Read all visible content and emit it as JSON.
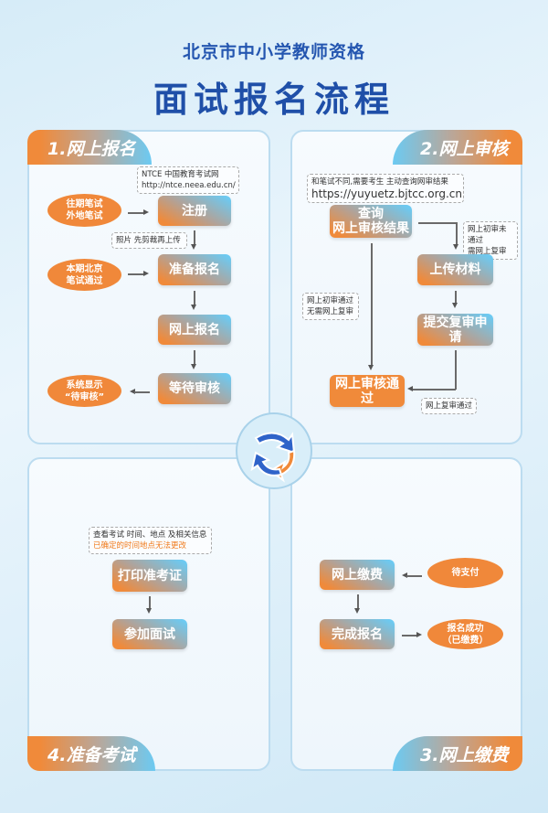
{
  "header": {
    "subtitle": "北京市中小学教师资格",
    "title": "面试报名流程"
  },
  "colors": {
    "orange": "#f08a3a",
    "blue": "#6ccaf2",
    "title_blue": "#1f4fa8"
  },
  "center_icon": "refresh-cycle-icon",
  "step1": {
    "tab": "1.网上报名",
    "note_site": {
      "line1": "NTCE 中国教育考试网",
      "line2": "http://ntce.neea.edu.cn/"
    },
    "note_photo": "照片 先剪裁再上传",
    "boxes": [
      "注册",
      "准备报名",
      "网上报名",
      "等待审核"
    ],
    "ovals": [
      {
        "line1": "往期笔试",
        "line2": "外地笔试"
      },
      {
        "line1": "本期北京",
        "line2": "笔试通过"
      },
      {
        "line1": "系统显示",
        "line2": "“待审核”"
      }
    ]
  },
  "step2": {
    "tab": "2.网上审核",
    "note_top": {
      "line1": "和笔试不同,需要考生 主动查询网审结果",
      "line2": "https://yuyuetz.bjtcc.org.cn"
    },
    "boxes": {
      "query_line1": "查询",
      "query_line2": "网上审核结果",
      "upload": "上传材料",
      "submit": "提交复审申请",
      "passed": "网上审核通过"
    },
    "note_fail": {
      "line1": "网上初审未通过",
      "line2": "需网上复审"
    },
    "note_pass": {
      "line1": "网上初审通过",
      "line2": "无需网上复审"
    },
    "note_review_pass": "网上复审通过"
  },
  "step3": {
    "tab": "3.网上缴费",
    "boxes": [
      "网上缴费",
      "完成报名"
    ],
    "ovals": [
      {
        "line1": "待支付"
      },
      {
        "line1": "报名成功",
        "line2": "（已缴费）"
      }
    ]
  },
  "step4": {
    "tab": "4.准备考试",
    "note": {
      "line1": "查看考试 时间、地点 及相关信息",
      "line2": "已确定的时间地点无法更改"
    },
    "boxes": [
      "打印准考证",
      "参加面试"
    ]
  }
}
